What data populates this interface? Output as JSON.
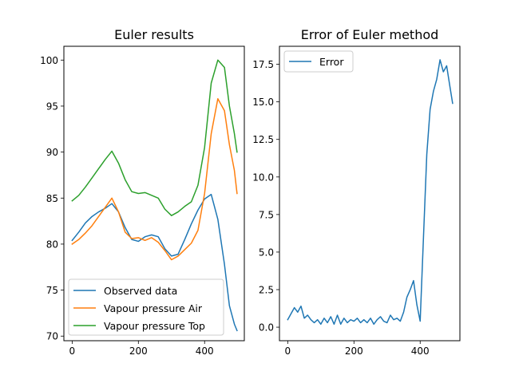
{
  "chart_data": [
    {
      "type": "line",
      "title": "Euler results",
      "xlabel": "",
      "ylabel": "",
      "xlim": [
        -25,
        520
      ],
      "ylim": [
        69.5,
        101.5
      ],
      "xticks": [
        0,
        200,
        400
      ],
      "yticks": [
        70,
        75,
        80,
        85,
        90,
        95,
        100
      ],
      "grid": false,
      "legend": "lower-left",
      "series": [
        {
          "name": "Observed data",
          "color": "#1f77b4",
          "x": [
            0,
            20,
            40,
            60,
            80,
            100,
            120,
            140,
            160,
            180,
            200,
            220,
            240,
            260,
            280,
            300,
            320,
            340,
            360,
            380,
            400,
            420,
            440,
            460,
            475,
            490,
            498
          ],
          "y": [
            80.4,
            81.3,
            82.3,
            83.0,
            83.5,
            83.9,
            84.4,
            83.5,
            81.8,
            80.5,
            80.3,
            80.8,
            81.0,
            80.8,
            79.5,
            78.7,
            78.9,
            80.5,
            82.2,
            83.7,
            84.9,
            85.4,
            82.7,
            77.8,
            73.3,
            71.3,
            70.6
          ]
        },
        {
          "name": "Vapour pressure Air",
          "color": "#ff7f0e",
          "x": [
            0,
            20,
            40,
            60,
            80,
            100,
            120,
            140,
            160,
            180,
            200,
            220,
            240,
            260,
            280,
            300,
            320,
            340,
            360,
            380,
            400,
            420,
            440,
            460,
            475,
            490,
            498
          ],
          "y": [
            80.0,
            80.5,
            81.2,
            82.0,
            83.0,
            84.0,
            85.0,
            83.5,
            81.3,
            80.6,
            80.7,
            80.4,
            80.7,
            80.2,
            79.3,
            78.3,
            78.7,
            79.4,
            80.1,
            81.5,
            85.5,
            92.0,
            95.8,
            94.5,
            90.8,
            88.0,
            85.5
          ]
        },
        {
          "name": "Vapour pressure Top",
          "color": "#2ca02c",
          "x": [
            0,
            20,
            40,
            60,
            80,
            100,
            120,
            140,
            160,
            180,
            200,
            220,
            240,
            260,
            280,
            300,
            320,
            340,
            360,
            380,
            400,
            420,
            440,
            460,
            475,
            490,
            498
          ],
          "y": [
            84.7,
            85.3,
            86.2,
            87.2,
            88.2,
            89.2,
            90.1,
            88.8,
            87.0,
            85.7,
            85.5,
            85.6,
            85.3,
            85.0,
            83.8,
            83.1,
            83.5,
            84.1,
            84.6,
            86.4,
            90.5,
            97.5,
            100.0,
            99.2,
            95.0,
            92.0,
            90.0
          ]
        }
      ]
    },
    {
      "type": "line",
      "title": "Error of Euler method",
      "xlabel": "",
      "ylabel": "",
      "xlim": [
        -25,
        520
      ],
      "ylim": [
        -0.9,
        18.7
      ],
      "xticks": [
        0,
        200,
        400
      ],
      "yticks": [
        0.0,
        2.5,
        5.0,
        7.5,
        10.0,
        12.5,
        15.0,
        17.5
      ],
      "ytick_labels": [
        "0.0",
        "2.5",
        "5.0",
        "7.5",
        "10.0",
        "12.5",
        "15.0",
        "17.5"
      ],
      "grid": false,
      "legend": "upper-left",
      "series": [
        {
          "name": "Error",
          "color": "#1f77b4",
          "x": [
            0,
            10,
            20,
            30,
            40,
            50,
            60,
            70,
            80,
            90,
            100,
            110,
            120,
            130,
            140,
            150,
            160,
            170,
            180,
            190,
            200,
            210,
            220,
            230,
            240,
            250,
            260,
            270,
            280,
            290,
            300,
            310,
            320,
            330,
            340,
            350,
            360,
            370,
            380,
            390,
            400,
            410,
            420,
            430,
            440,
            450,
            460,
            470,
            480,
            490,
            498
          ],
          "y": [
            0.5,
            0.9,
            1.3,
            1.0,
            1.4,
            0.6,
            0.8,
            0.5,
            0.3,
            0.5,
            0.2,
            0.6,
            0.3,
            0.7,
            0.2,
            0.8,
            0.2,
            0.6,
            0.3,
            0.5,
            0.4,
            0.6,
            0.3,
            0.5,
            0.3,
            0.6,
            0.2,
            0.5,
            0.7,
            0.4,
            0.3,
            0.8,
            0.5,
            0.6,
            0.4,
            1.0,
            2.0,
            2.5,
            3.1,
            1.5,
            0.4,
            6.0,
            11.5,
            14.5,
            15.7,
            16.5,
            17.8,
            17.0,
            17.4,
            16.0,
            14.9
          ]
        }
      ]
    }
  ]
}
